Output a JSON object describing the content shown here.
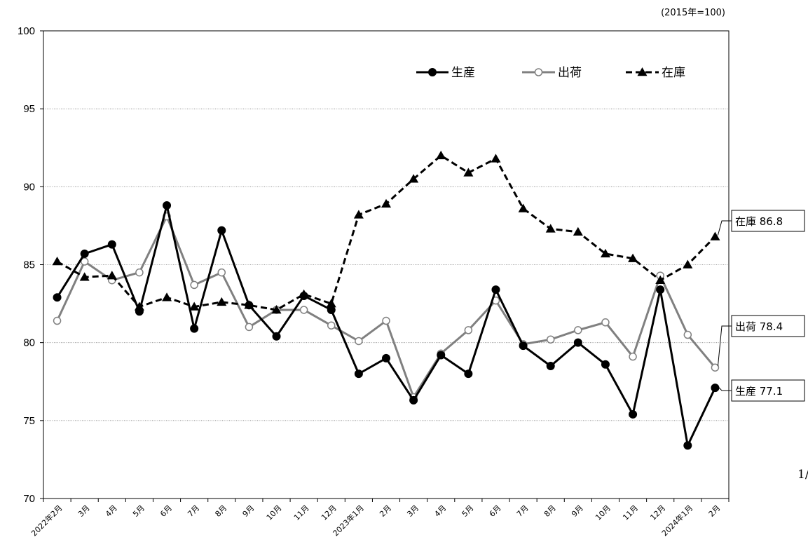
{
  "chart_data": {
    "type": "line",
    "unit_note": "(2015年=100)",
    "ylim": [
      70,
      100
    ],
    "y_ticks": [
      70,
      75,
      80,
      85,
      90,
      95,
      100
    ],
    "grid": "horizontal dotted",
    "legend_position": "top-right",
    "categories": [
      "2022年2月",
      "3月",
      "4月",
      "5月",
      "6月",
      "7月",
      "8月",
      "9月",
      "10月",
      "11月",
      "12月",
      "2023年1月",
      "2月",
      "3月",
      "4月",
      "5月",
      "6月",
      "7月",
      "8月",
      "9月",
      "10月",
      "11月",
      "12月",
      "2024年1月",
      "2月"
    ],
    "series": [
      {
        "name": "生産",
        "color": "#000000",
        "style": "solid",
        "marker": "filled-circle",
        "values": [
          82.9,
          85.7,
          86.3,
          82.0,
          88.8,
          80.9,
          87.2,
          82.4,
          80.4,
          83.0,
          82.1,
          78.0,
          79.0,
          76.3,
          79.2,
          78.0,
          83.4,
          79.8,
          78.5,
          80.0,
          78.6,
          75.4,
          83.4,
          73.4,
          77.1
        ]
      },
      {
        "name": "出荷",
        "color": "#808080",
        "style": "solid",
        "marker": "open-circle",
        "values": [
          81.4,
          85.2,
          84.0,
          84.5,
          88.1,
          83.7,
          84.5,
          81.0,
          82.1,
          82.1,
          81.1,
          80.1,
          81.4,
          76.5,
          79.3,
          80.8,
          82.7,
          79.9,
          80.2,
          80.8,
          81.3,
          79.1,
          84.3,
          80.5,
          78.4
        ]
      },
      {
        "name": "在庫",
        "color": "#000000",
        "style": "dashed",
        "marker": "filled-triangle",
        "values": [
          85.2,
          84.2,
          84.3,
          82.3,
          82.9,
          82.3,
          82.6,
          82.4,
          82.1,
          83.1,
          82.5,
          88.2,
          88.9,
          90.5,
          92.0,
          90.9,
          91.8,
          88.6,
          87.3,
          87.1,
          85.7,
          85.4,
          84.0,
          85.0,
          86.8
        ]
      }
    ],
    "callouts": [
      {
        "series": "在庫",
        "text": "在庫 86.8"
      },
      {
        "series": "出荷",
        "text": "出荷 78.4"
      },
      {
        "series": "生産",
        "text": "生産 77.1"
      }
    ]
  },
  "page_number_fragment": "1/"
}
